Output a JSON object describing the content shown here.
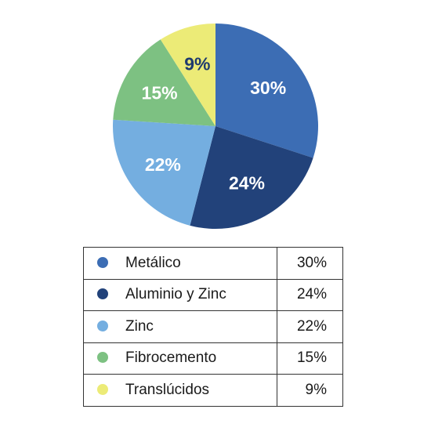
{
  "chart_data": {
    "type": "pie",
    "categories": [
      "Metálico",
      "Aluminio y Zinc",
      "Zinc",
      "Fibrocemento",
      "Translúcidos"
    ],
    "values": [
      30,
      24,
      22,
      15,
      9
    ],
    "labels": [
      "30%",
      "24%",
      "22%",
      "15%",
      "9%"
    ],
    "colors": [
      "#3c6db4",
      "#22427a",
      "#74aee0",
      "#7dc182",
      "#eceb77"
    ],
    "label_colors": [
      "#ffffff",
      "#ffffff",
      "#ffffff",
      "#ffffff",
      "#1e3a6e"
    ],
    "start_angle_deg": 0,
    "direction": "clockwise"
  },
  "legend": {
    "rows": [
      {
        "label": "Metálico",
        "value": "30%",
        "color": "#3c6db4"
      },
      {
        "label": "Aluminio y Zinc",
        "value": "24%",
        "color": "#22427a"
      },
      {
        "label": "Zinc",
        "value": "22%",
        "color": "#74aee0"
      },
      {
        "label": "Fibrocemento",
        "value": "15%",
        "color": "#7dc182"
      },
      {
        "label": "Translúcidos",
        "value": "9%",
        "color": "#eceb77"
      }
    ]
  }
}
